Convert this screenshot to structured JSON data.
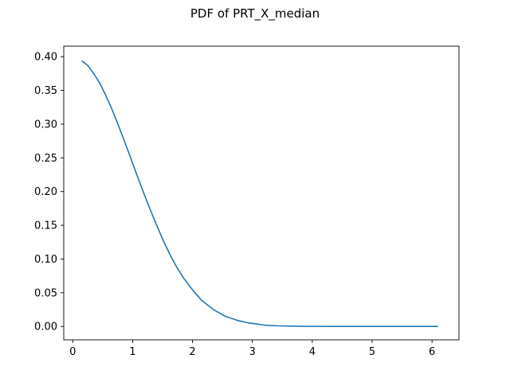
{
  "chart_data": {
    "type": "line",
    "title": "PDF of PRT_X_median",
    "xlabel": "",
    "ylabel": "",
    "xlim": [
      -0.15,
      6.45
    ],
    "ylim": [
      -0.0198,
      0.4156
    ],
    "xticks": [
      0,
      1,
      2,
      3,
      4,
      5,
      6
    ],
    "yticks": [
      0.0,
      0.05,
      0.1,
      0.15,
      0.2,
      0.25,
      0.3,
      0.35,
      0.4
    ],
    "ytick_labels": [
      "0.00",
      "0.05",
      "0.10",
      "0.15",
      "0.20",
      "0.25",
      "0.30",
      "0.35",
      "0.40"
    ],
    "xtick_labels": [
      "0",
      "1",
      "2",
      "3",
      "4",
      "5",
      "6"
    ],
    "grid": false,
    "legend": "none",
    "series": [
      {
        "color": "#1f77b4",
        "x": [
          0.15,
          0.25,
          0.35,
          0.45,
          0.55,
          0.65,
          0.75,
          0.85,
          0.95,
          1.05,
          1.15,
          1.25,
          1.35,
          1.45,
          1.55,
          1.65,
          1.75,
          1.85,
          1.95,
          2.05,
          2.15,
          2.25,
          2.35,
          2.45,
          2.55,
          2.65,
          2.75,
          2.85,
          2.95,
          3.05,
          3.2,
          3.4,
          3.6,
          3.8,
          4.0,
          4.3,
          4.6,
          5.0,
          5.4,
          5.8,
          6.1
        ],
        "y": [
          0.394,
          0.387,
          0.375,
          0.361,
          0.343,
          0.323,
          0.301,
          0.278,
          0.254,
          0.23,
          0.206,
          0.183,
          0.161,
          0.14,
          0.12,
          0.102,
          0.086,
          0.072,
          0.06,
          0.049,
          0.039,
          0.032,
          0.025,
          0.02,
          0.015,
          0.012,
          0.009,
          0.007,
          0.005,
          0.004,
          0.002,
          0.001,
          0.0006,
          0.0003,
          0.0001,
          0.0,
          0.0,
          0.0,
          0.0,
          0.0,
          0.0
        ]
      }
    ]
  }
}
